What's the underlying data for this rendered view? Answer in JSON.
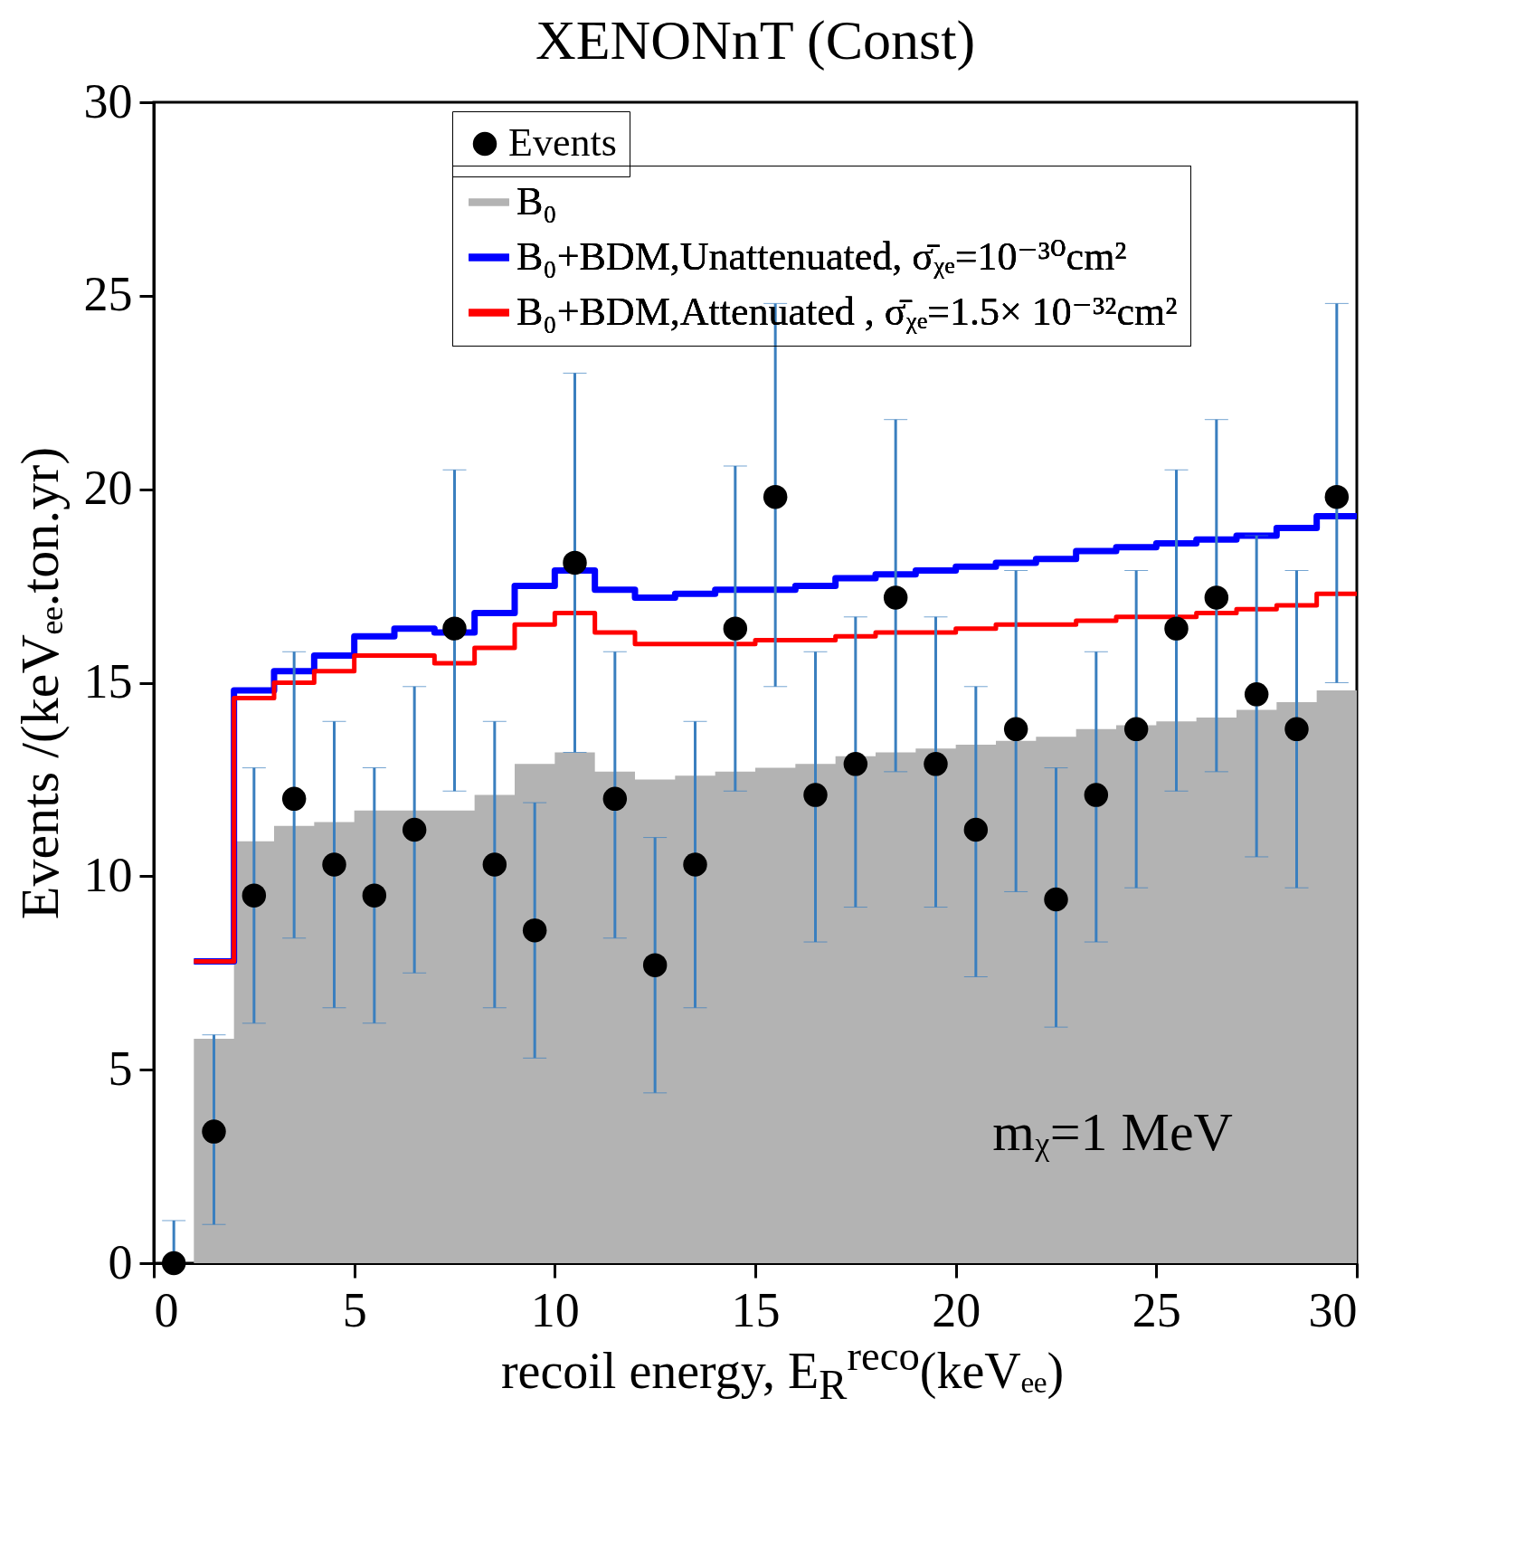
{
  "chart_data": {
    "type": "step",
    "title": "XENONnT (Const)",
    "xlabel": "recoil energy, E$_{R}$$^{reco}$(keVₑₑ)",
    "ylabel": "Events /(keVₑₑ.ton.yr)",
    "xlim": [
      0,
      30
    ],
    "xticks": [
      0,
      5,
      10,
      15,
      20,
      25,
      30
    ],
    "ylim": [
      0,
      30
    ],
    "yticks": [
      0,
      5,
      10,
      15,
      20,
      25,
      30
    ],
    "legend": "top",
    "grid": false,
    "annotations": [
      "mᵪ=1 MeV"
    ],
    "series": [
      {
        "name": "Events",
        "type": "scatter",
        "marker": "circle",
        "color": "#000000",
        "x": [
          0.5,
          1.5,
          2.5,
          3.5,
          4.5,
          5.5,
          6.5,
          7.5,
          8.5,
          9.5,
          10.5,
          11.5,
          12.5,
          13.5,
          14.5,
          15.5,
          16.5,
          17.5,
          18.5,
          19.5,
          20.5,
          21.5,
          22.5,
          23.5,
          24.5,
          25.5,
          26.5,
          27.5,
          28.5,
          29.5
        ],
        "values": [
          0,
          3.4,
          9.5,
          12.0,
          10.3,
          9.5,
          11.2,
          16.4,
          10.3,
          8.6,
          18.1,
          12.0,
          7.7,
          10.3,
          16.4,
          19.8,
          12.1,
          12.9,
          17.2,
          12.9,
          11.2,
          13.8,
          9.4,
          12.1,
          13.8,
          16.4,
          17.2,
          14.7,
          13.8,
          19.8
        ],
        "errors": [
          [
            0,
            1.1
          ],
          [
            1.0,
            5.9
          ],
          [
            6.2,
            12.8
          ],
          [
            8.4,
            15.8
          ],
          [
            6.6,
            14.0
          ],
          [
            6.2,
            12.8
          ],
          [
            7.5,
            14.9
          ],
          [
            12.2,
            20.5
          ],
          [
            6.6,
            14.0
          ],
          [
            5.3,
            11.9
          ],
          [
            13.2,
            23.0
          ],
          [
            8.4,
            15.8
          ],
          [
            4.4,
            11.0
          ],
          [
            6.6,
            14.0
          ],
          [
            12.2,
            20.6
          ],
          [
            14.9,
            24.8
          ],
          [
            8.3,
            15.8
          ],
          [
            9.2,
            16.7
          ],
          [
            12.7,
            21.8
          ],
          [
            9.2,
            16.7
          ],
          [
            7.4,
            14.9
          ],
          [
            9.6,
            17.9
          ],
          [
            6.1,
            12.8
          ],
          [
            8.3,
            15.8
          ],
          [
            9.7,
            17.9
          ],
          [
            12.2,
            20.5
          ],
          [
            12.7,
            21.8
          ],
          [
            10.5,
            18.8
          ],
          [
            9.7,
            17.9
          ],
          [
            15.0,
            24.8
          ]
        ]
      },
      {
        "name": "B₀",
        "type": "area",
        "color": "#b3b3b3",
        "x": [
          1,
          2,
          3,
          4,
          5,
          6,
          7,
          8,
          9,
          10,
          11,
          12,
          13,
          14,
          15,
          16,
          17,
          18,
          19,
          20,
          21,
          22,
          23,
          24,
          25,
          26,
          27,
          28,
          29,
          30
        ],
        "values": [
          5.8,
          10.9,
          11.3,
          11.4,
          11.7,
          11.7,
          11.7,
          12.1,
          12.9,
          13.2,
          12.7,
          12.5,
          12.6,
          12.7,
          12.8,
          12.9,
          13.1,
          13.2,
          13.3,
          13.4,
          13.5,
          13.6,
          13.8,
          13.9,
          14.0,
          14.1,
          14.3,
          14.5,
          14.8,
          14.8
        ]
      },
      {
        "name": "B₀+BDM,Unattenuated,  σ̄ᵪₑ=10⁻³⁰cm²",
        "color": "#0000ff",
        "x": [
          1,
          2,
          3,
          4,
          5,
          6,
          7,
          8,
          9,
          10,
          11,
          12,
          13,
          14,
          15,
          16,
          17,
          18,
          19,
          20,
          21,
          22,
          23,
          24,
          25,
          26,
          27,
          28,
          29,
          30
        ],
        "values": [
          7.8,
          14.8,
          15.3,
          15.7,
          16.2,
          16.4,
          16.3,
          16.8,
          17.5,
          17.9,
          17.4,
          17.2,
          17.3,
          17.4,
          17.4,
          17.5,
          17.7,
          17.8,
          17.9,
          18.0,
          18.1,
          18.2,
          18.4,
          18.5,
          18.6,
          18.7,
          18.8,
          19.0,
          19.3,
          19.3
        ]
      },
      {
        "name": "B₀+BDM,Attenuated , σ̄ᵪₑ=1.5× 10⁻³²cm²",
        "color": "#ff0000",
        "x": [
          1,
          2,
          3,
          4,
          5,
          6,
          7,
          8,
          9,
          10,
          11,
          12,
          13,
          14,
          15,
          16,
          17,
          18,
          19,
          20,
          21,
          22,
          23,
          24,
          25,
          26,
          27,
          28,
          29,
          30
        ],
        "values": [
          7.8,
          14.6,
          15.0,
          15.3,
          15.7,
          15.7,
          15.5,
          15.9,
          16.5,
          16.8,
          16.3,
          16.0,
          16.0,
          16.0,
          16.1,
          16.1,
          16.2,
          16.3,
          16.3,
          16.4,
          16.5,
          16.5,
          16.6,
          16.7,
          16.7,
          16.8,
          16.9,
          17.0,
          17.3,
          17.3
        ]
      }
    ]
  }
}
